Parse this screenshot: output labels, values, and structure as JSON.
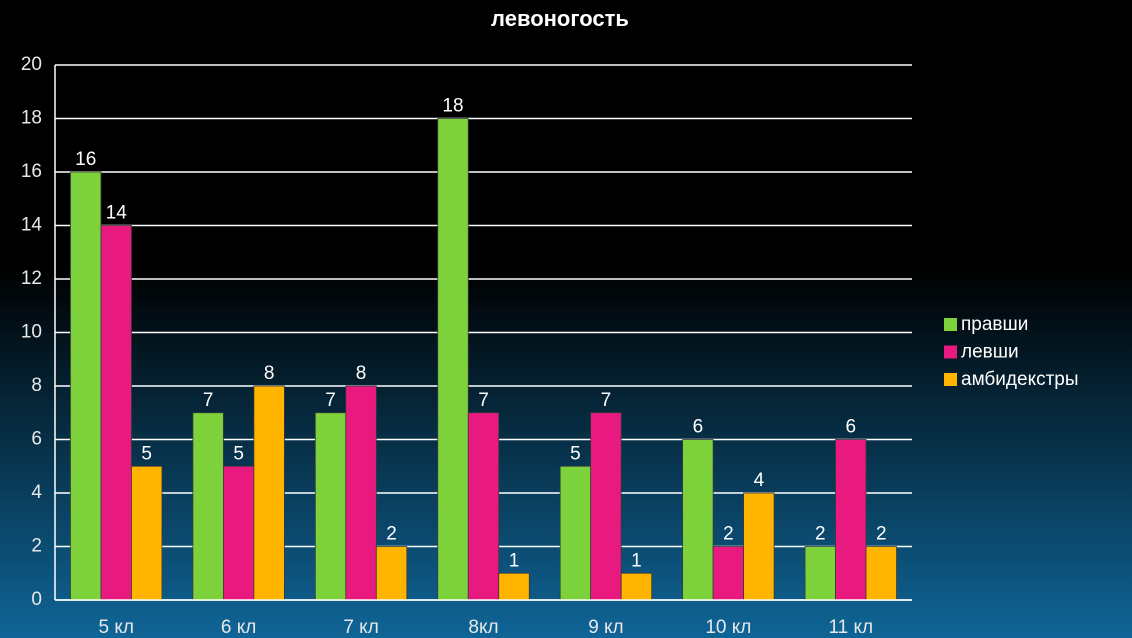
{
  "chart_data": {
    "type": "bar",
    "title": "левоногость",
    "categories": [
      "5 кл",
      "6 кл",
      "7 кл",
      "8кл",
      "9 кл",
      "10 кл",
      "11 кл"
    ],
    "series": [
      {
        "name": "правши",
        "color": "#7dd13a",
        "values": [
          16,
          7,
          7,
          18,
          5,
          6,
          2
        ]
      },
      {
        "name": "левши",
        "color": "#e8197f",
        "values": [
          14,
          5,
          8,
          7,
          7,
          2,
          6
        ]
      },
      {
        "name": "амбидекстры",
        "color": "#ffb400",
        "values": [
          5,
          8,
          2,
          1,
          1,
          4,
          2
        ]
      }
    ],
    "ylim": [
      0,
      20
    ],
    "yticks": [
      0,
      2,
      4,
      6,
      8,
      10,
      12,
      14,
      16,
      18,
      20
    ],
    "grid": true,
    "legend": "right"
  }
}
